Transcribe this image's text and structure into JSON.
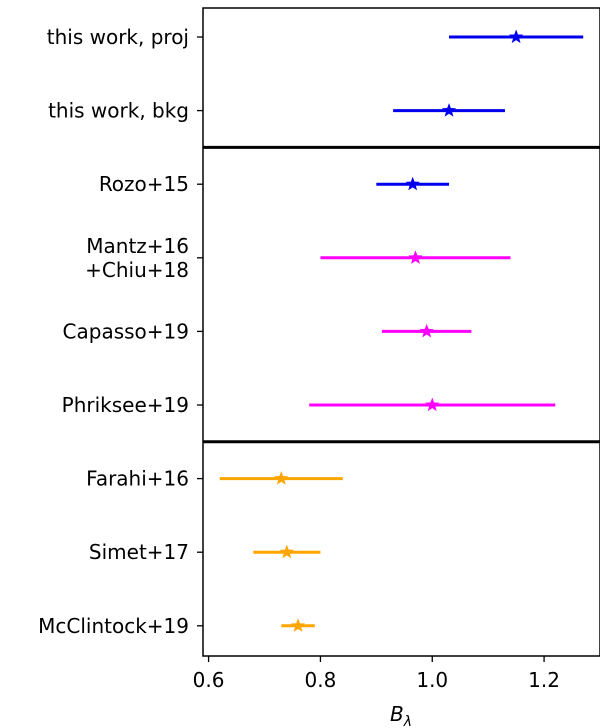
{
  "chart_data": {
    "type": "errorbar",
    "xlabel": "B",
    "xlabel_subscript": "λ",
    "xlim": [
      0.59,
      1.3
    ],
    "xticks": [
      "0.6",
      "0.8",
      "1.0",
      "1.2"
    ],
    "xtick_values": [
      0.6,
      0.8,
      1.0,
      1.2
    ],
    "group_separators_after": [
      1,
      5
    ],
    "rows": [
      {
        "label": [
          "this work, proj"
        ],
        "value": 1.15,
        "low": 1.03,
        "high": 1.27,
        "color": "#0000ee"
      },
      {
        "label": [
          "this work, bkg"
        ],
        "value": 1.03,
        "low": 0.93,
        "high": 1.13,
        "color": "#0000ee"
      },
      {
        "label": [
          "Rozo+15"
        ],
        "value": 0.965,
        "low": 0.9,
        "high": 1.03,
        "color": "#0000ee"
      },
      {
        "label": [
          "Mantz+16",
          "+Chiu+18"
        ],
        "value": 0.97,
        "low": 0.8,
        "high": 1.14,
        "color": "#ff00ff"
      },
      {
        "label": [
          "Capasso+19"
        ],
        "value": 0.99,
        "low": 0.91,
        "high": 1.07,
        "color": "#ff00ff"
      },
      {
        "label": [
          "Phriksee+19"
        ],
        "value": 1.0,
        "low": 0.78,
        "high": 1.22,
        "color": "#ff00ff"
      },
      {
        "label": [
          "Farahi+16"
        ],
        "value": 0.73,
        "low": 0.62,
        "high": 0.84,
        "color": "#ffa500"
      },
      {
        "label": [
          "Simet+17"
        ],
        "value": 0.74,
        "low": 0.68,
        "high": 0.8,
        "color": "#ffa500"
      },
      {
        "label": [
          "McClintock+19"
        ],
        "value": 0.76,
        "low": 0.73,
        "high": 0.79,
        "color": "#ffa500"
      }
    ]
  }
}
